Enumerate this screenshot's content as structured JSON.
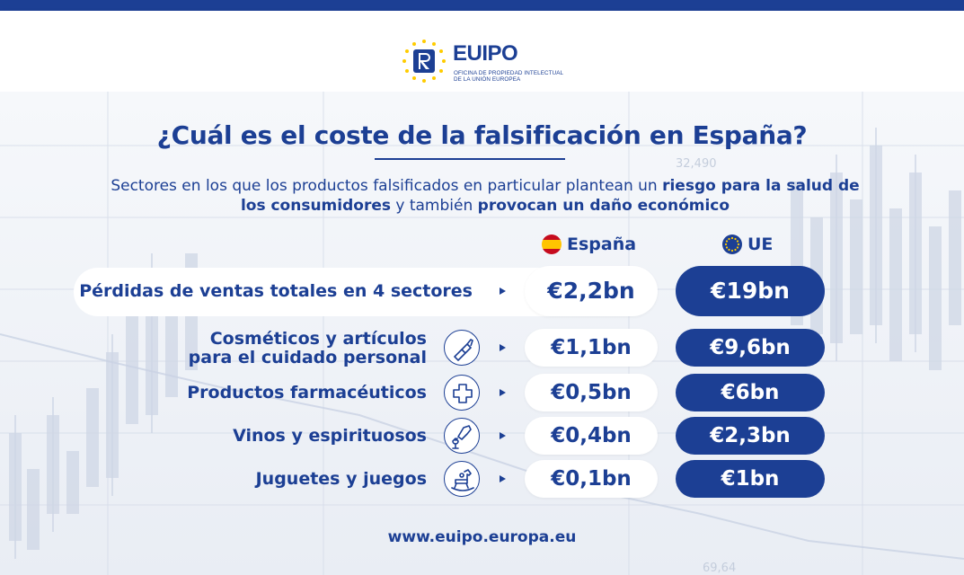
{
  "header": {
    "logo": {
      "name": "EUIPO",
      "name_part1": "EU",
      "name_part2": "IPO",
      "subtitle_line1": "OFICINA DE PROPIEDAD INTELECTUAL",
      "subtitle_line2": "DE LA UNIÓN EUROPEA"
    }
  },
  "title": "¿Cuál es el coste de la falsificación en España?",
  "subtitle": {
    "part1": "Sectores en los que los productos falsificados en particular plantean un ",
    "bold1": "riesgo para la salud de los consumidores",
    "part2": " y también ",
    "bold2": "provocan un daño económico"
  },
  "columns": {
    "spain": "España",
    "eu": "UE"
  },
  "total": {
    "label": "Pérdidas de ventas totales en 4 sectores",
    "spain": "€2,2bn",
    "eu": "€19bn"
  },
  "rows": [
    {
      "label_line1": "Cosméticos y artículos",
      "label_line2": "para el cuidado personal",
      "icon": "lipstick-icon",
      "spain": "€1,1bn",
      "eu": "€9,6bn"
    },
    {
      "label_line1": "Productos farmacéuticos",
      "label_line2": "",
      "icon": "medical-cross-icon",
      "spain": "€0,5bn",
      "eu": "€6bn"
    },
    {
      "label_line1": "Vinos y espirituosos",
      "label_line2": "",
      "icon": "wine-pour-icon",
      "spain": "€0,4bn",
      "eu": "€2,3bn"
    },
    {
      "label_line1": "Juguetes y juegos",
      "label_line2": "",
      "icon": "rocking-horse-icon",
      "spain": "€0,1bn",
      "eu": "€1bn"
    }
  ],
  "background_chart_labels": [
    "32,490",
    "69,64"
  ],
  "footer": {
    "url": "www.euipo.europa.eu"
  },
  "colors": {
    "primary": "#1c3f94",
    "spain_red": "#c60b1e",
    "spain_yellow": "#ffc400",
    "eu_star": "#ffcc00"
  }
}
